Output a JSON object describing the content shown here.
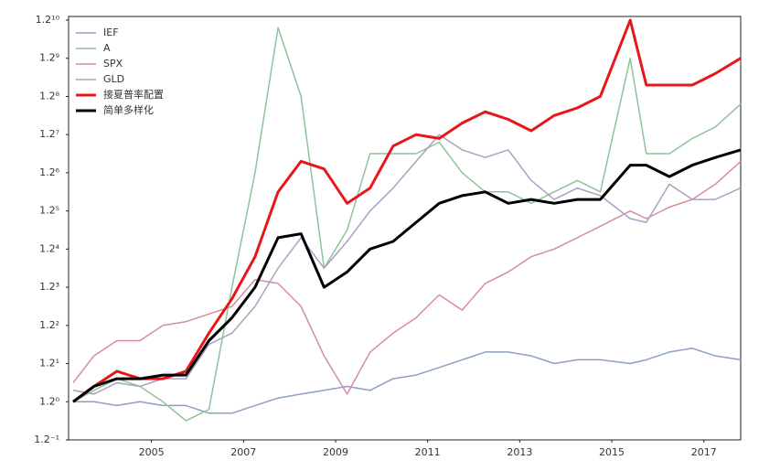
{
  "chart_data": {
    "type": "line",
    "yscale": "log",
    "legend": "upper left",
    "grid": false,
    "x": [
      2003.3,
      2003.75,
      2004.25,
      2004.75,
      2005.25,
      2005.75,
      2006.25,
      2006.75,
      2007.25,
      2007.75,
      2008.25,
      2008.75,
      2009.25,
      2009.75,
      2010.25,
      2010.75,
      2011.25,
      2011.75,
      2012.25,
      2012.75,
      2013.25,
      2013.75,
      2014.25,
      2014.75,
      2015.4,
      2015.75,
      2016.25,
      2016.75,
      2017.25,
      2017.8
    ],
    "xlim": [
      2003.2,
      2017.8
    ],
    "xticks": [
      2005,
      2007,
      2009,
      2011,
      2013,
      2015,
      2017
    ],
    "ylim": [
      0.8333,
      6.1917
    ],
    "yticks": [
      {
        "value": 0.8333,
        "label": "1.2⁻¹"
      },
      {
        "value": 1,
        "label": "1.2⁰"
      },
      {
        "value": 1.2,
        "label": "1.2¹"
      },
      {
        "value": 1.44,
        "label": "1.2²"
      },
      {
        "value": 1.728,
        "label": "1.2³"
      },
      {
        "value": 2.0736,
        "label": "1.2⁴"
      },
      {
        "value": 2.4883,
        "label": "1.2⁵"
      },
      {
        "value": 2.986,
        "label": "1.2⁶"
      },
      {
        "value": 3.5832,
        "label": "1.2⁷"
      },
      {
        "value": 4.2998,
        "label": "1.2⁸"
      },
      {
        "value": 5.1598,
        "label": "1.2⁹"
      },
      {
        "value": 6.1917,
        "label": "1.2¹⁰"
      }
    ],
    "series": [
      {
        "name": "IEF",
        "color": "#8c9fc4",
        "width": 1.5,
        "values": [
          1,
          1,
          0.982,
          1,
          0.982,
          0.982,
          0.9468,
          0.9468,
          0.982,
          1.018,
          1.037,
          1.056,
          1.076,
          1.056,
          1.116,
          1.136,
          1.178,
          1.222,
          1.268,
          1.268,
          1.245,
          1.2,
          1.222,
          1.222,
          1.2,
          1.222,
          1.268,
          1.291,
          1.245,
          1.222
        ]
      },
      {
        "name": "A",
        "color": "#8ec49a",
        "width": 1.5,
        "values": [
          1,
          1.056,
          1.116,
          1.076,
          1,
          0.913,
          0.964,
          1.728,
          2.986,
          5.97,
          4.3,
          1.893,
          2.271,
          3.271,
          3.271,
          3.271,
          3.455,
          2.986,
          2.726,
          2.726,
          2.581,
          2.726,
          2.879,
          2.726,
          5.16,
          3.271,
          3.271,
          3.518,
          3.716,
          4.146
        ]
      },
      {
        "name": "SPX",
        "color": "#d48d9e",
        "width": 1.5,
        "values": [
          1.095,
          1.245,
          1.339,
          1.339,
          1.44,
          1.466,
          1.521,
          1.577,
          1.792,
          1.76,
          1.577,
          1.245,
          1.037,
          1.267,
          1.388,
          1.494,
          1.666,
          1.549,
          1.76,
          1.859,
          1.999,
          2.074,
          2.19,
          2.313,
          2.488,
          2.399,
          2.534,
          2.628,
          2.827,
          3.154
        ]
      },
      {
        "name": "GLD",
        "color": "#ad9fc2",
        "width": 1.5,
        "values": [
          1.056,
          1.037,
          1.095,
          1.076,
          1.116,
          1.116,
          1.315,
          1.388,
          1.577,
          1.893,
          2.19,
          1.893,
          2.151,
          2.488,
          2.776,
          3.154,
          3.583,
          3.331,
          3.212,
          3.331,
          2.879,
          2.628,
          2.776,
          2.677,
          2.399,
          2.356,
          2.827,
          2.628,
          2.628,
          2.776
        ]
      },
      {
        "name": "接夏普率配置",
        "color": "#e8161b",
        "width": 3,
        "values": [
          1,
          1.076,
          1.157,
          1.116,
          1.116,
          1.157,
          1.388,
          1.636,
          1.999,
          2.726,
          3.154,
          3.041,
          2.581,
          2.776,
          3.392,
          3.583,
          3.518,
          3.785,
          3.997,
          3.854,
          3.649,
          3.925,
          4.071,
          4.3,
          6.192,
          4.541,
          4.541,
          4.541,
          4.797,
          5.16
        ]
      },
      {
        "name": "简单多样化",
        "color": "#000000",
        "width": 3,
        "values": [
          1,
          1.076,
          1.116,
          1.116,
          1.136,
          1.136,
          1.339,
          1.494,
          1.728,
          2.19,
          2.231,
          1.728,
          1.859,
          2.074,
          2.151,
          2.356,
          2.581,
          2.677,
          2.726,
          2.581,
          2.628,
          2.581,
          2.628,
          2.628,
          3.097,
          3.097,
          2.932,
          3.097,
          3.212,
          3.331
        ]
      }
    ]
  }
}
